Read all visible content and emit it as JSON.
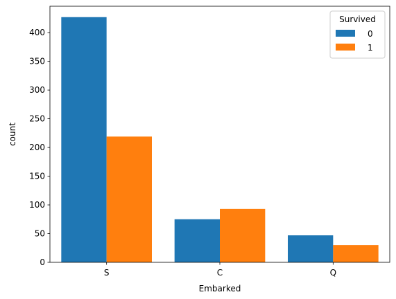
{
  "chart_data": {
    "type": "bar",
    "xlabel": "Embarked",
    "ylabel": "count",
    "categories": [
      "S",
      "C",
      "Q"
    ],
    "ylim": [
      0,
      446
    ],
    "yticks": [
      0,
      50,
      100,
      150,
      200,
      250,
      300,
      350,
      400
    ],
    "grid": false,
    "legend": {
      "title": "Survived",
      "placement": "top-right"
    },
    "series": [
      {
        "name": "0",
        "color": "#1f77b4",
        "values": [
          427,
          75,
          47
        ]
      },
      {
        "name": "1",
        "color": "#ff7f0e",
        "values": [
          219,
          93,
          30
        ]
      }
    ]
  }
}
